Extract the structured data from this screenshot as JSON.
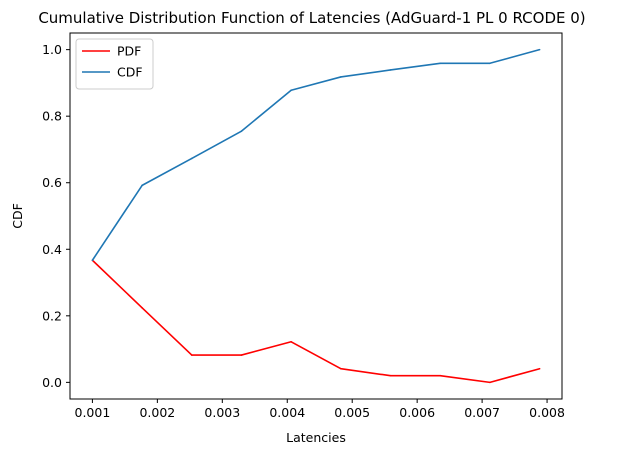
{
  "chart_data": {
    "type": "line",
    "title": "Cumulative Distribution Function of Latencies (AdGuard-1 PL 0 RCODE 0)",
    "xlabel": "Latencies",
    "ylabel": "CDF",
    "x": [
      0.001,
      0.001765,
      0.00253,
      0.003295,
      0.00406,
      0.004825,
      0.00559,
      0.006355,
      0.00712,
      0.007885
    ],
    "series": [
      {
        "name": "PDF",
        "color": "#ff0000",
        "values": [
          0.367,
          0.224,
          0.082,
          0.082,
          0.122,
          0.041,
          0.02,
          0.02,
          0.0,
          0.041
        ]
      },
      {
        "name": "CDF",
        "color": "#1f77b4",
        "values": [
          0.367,
          0.592,
          0.673,
          0.755,
          0.878,
          0.918,
          0.939,
          0.959,
          0.959,
          1.0
        ]
      }
    ],
    "xlim": [
      0.000655,
      0.00823
    ],
    "ylim": [
      -0.05,
      1.05
    ],
    "xticks": [
      0.001,
      0.002,
      0.003,
      0.004,
      0.005,
      0.006,
      0.007,
      0.008
    ],
    "xtick_labels": [
      "0.001",
      "0.002",
      "0.003",
      "0.004",
      "0.005",
      "0.006",
      "0.007",
      "0.008"
    ],
    "yticks": [
      0.0,
      0.2,
      0.4,
      0.6,
      0.8,
      1.0
    ],
    "ytick_labels": [
      "0.0",
      "0.2",
      "0.4",
      "0.6",
      "0.8",
      "1.0"
    ],
    "grid": false,
    "legend_position": "upper-left"
  }
}
